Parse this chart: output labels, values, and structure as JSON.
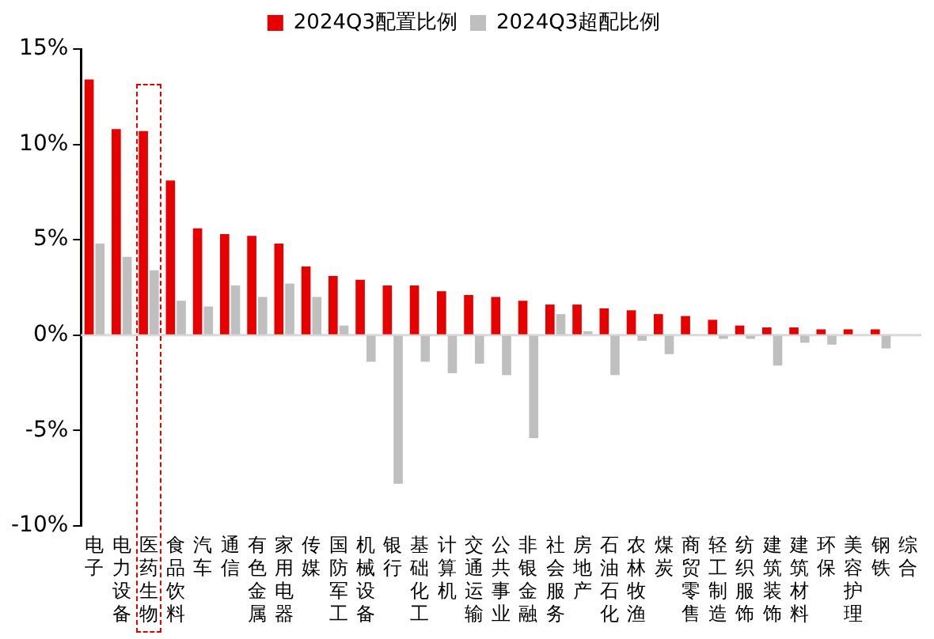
{
  "chart_data": {
    "type": "bar",
    "categories": [
      "电子",
      "电力设备",
      "医药生物",
      "食品饮料",
      "汽车",
      "通信",
      "有色金属",
      "家用电器",
      "传媒",
      "国防军工",
      "机械设备",
      "银行",
      "基础化工",
      "计算机",
      "交通运输",
      "公共事业",
      "非银金融",
      "社会服务",
      "房地产",
      "石油石化",
      "农林牧渔",
      "煤炭",
      "商贸零售",
      "轻工制造",
      "纺织服饰",
      "建筑装饰",
      "建筑材料",
      "环保",
      "美容护理",
      "钢铁",
      "综合"
    ],
    "series": [
      {
        "name": "2024Q3配置比例",
        "color": "#e60000",
        "values": [
          13.4,
          10.8,
          10.7,
          8.1,
          5.6,
          5.3,
          5.2,
          4.8,
          3.6,
          3.1,
          2.9,
          2.6,
          2.6,
          2.3,
          2.1,
          2.0,
          1.8,
          1.6,
          1.6,
          1.4,
          1.3,
          1.1,
          1.0,
          0.8,
          0.5,
          0.4,
          0.4,
          0.3,
          0.3,
          0.3,
          0
        ]
      },
      {
        "name": "2024Q3超配比例",
        "color": "#bfbfbf",
        "values": [
          4.8,
          4.1,
          3.4,
          1.8,
          1.5,
          2.6,
          2.0,
          2.7,
          2.0,
          0.5,
          -1.4,
          -7.8,
          -1.4,
          -2.0,
          -1.5,
          -2.1,
          -5.4,
          1.1,
          0.2,
          -2.1,
          -0.3,
          -1.0,
          0,
          -0.2,
          -0.2,
          -1.6,
          -0.4,
          -0.5,
          0,
          -0.7,
          0
        ]
      }
    ],
    "ylim": [
      -10,
      15
    ],
    "yticks": [
      {
        "value": -10,
        "label": "-10%"
      },
      {
        "value": -5,
        "label": "-5%"
      },
      {
        "value": 0,
        "label": "0%"
      },
      {
        "value": 5,
        "label": "5%"
      },
      {
        "value": 10,
        "label": "10%"
      },
      {
        "value": 15,
        "label": "15%"
      }
    ],
    "ref_lines": [
      {
        "axis": "y",
        "value": 0,
        "color": "#d9d9d9"
      }
    ],
    "legend": "top"
  }
}
